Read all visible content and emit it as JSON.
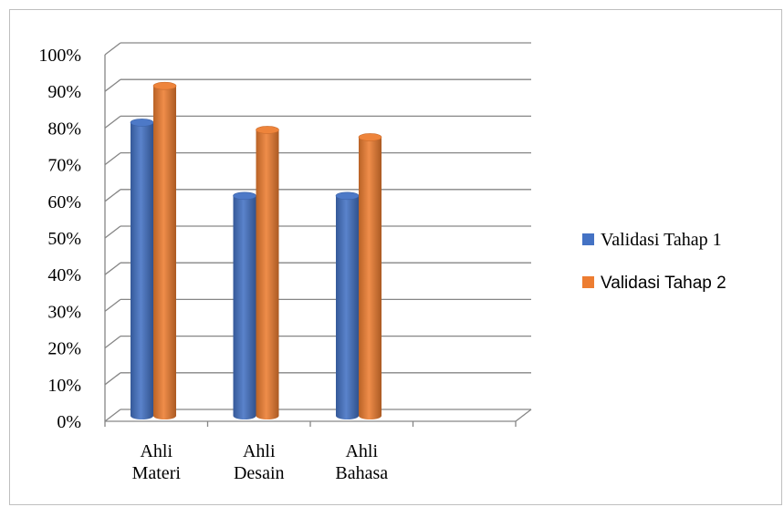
{
  "chart_data": {
    "type": "bar",
    "categories": [
      "Ahli Materi",
      "Ahli Desain",
      "Ahli Bahasa"
    ],
    "category_lines": [
      [
        "Ahli",
        "Materi"
      ],
      [
        "Ahli",
        "Desain"
      ],
      [
        "Ahli",
        "Bahasa"
      ]
    ],
    "series": [
      {
        "name": "Validasi Tahap 1",
        "values": [
          80,
          60,
          60
        ],
        "color": "#4472C4"
      },
      {
        "name": "Validasi Tahap 2",
        "values": [
          90,
          78,
          76
        ],
        "color": "#ED7D31"
      }
    ],
    "y_ticks": [
      "0%",
      "10%",
      "20%",
      "30%",
      "40%",
      "50%",
      "60%",
      "70%",
      "80%",
      "90%",
      "100%"
    ],
    "ylim": [
      0,
      100
    ],
    "grid": true,
    "legend_position": "right",
    "title": "",
    "xlabel": "",
    "ylabel": ""
  }
}
